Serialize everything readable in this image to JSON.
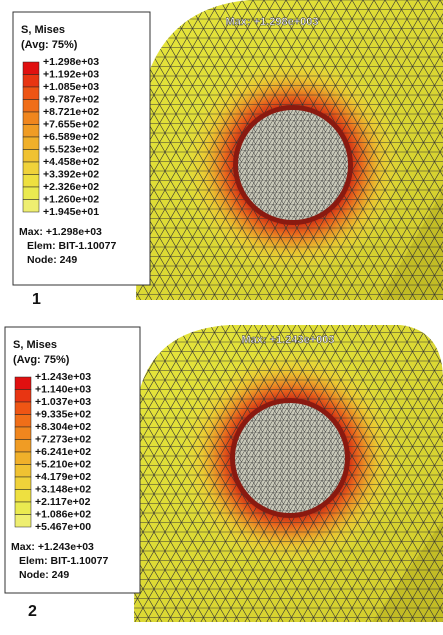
{
  "panels": [
    {
      "legend_title": "S, Mises",
      "legend_subtitle": "(Avg: 75%)",
      "levels": [
        "+1.298e+03",
        "+1.192e+03",
        "+1.085e+03",
        "+9.787e+02",
        "+8.721e+02",
        "+7.655e+02",
        "+6.589e+02",
        "+5.523e+02",
        "+4.458e+02",
        "+3.392e+02",
        "+2.326e+02",
        "+1.260e+02",
        "+1.945e+01"
      ],
      "max": "Max: +1.298e+03",
      "elem": "Elem: BIT-1.10077",
      "node": "Node: 249",
      "max_annotation": "Max: +1.298e+003",
      "label": "1"
    },
    {
      "legend_title": "S, Mises",
      "legend_subtitle": "(Avg: 75%)",
      "levels": [
        "+1.243e+03",
        "+1.140e+03",
        "+1.037e+03",
        "+9.335e+02",
        "+8.304e+02",
        "+7.273e+02",
        "+6.241e+02",
        "+5.210e+02",
        "+4.179e+02",
        "+3.148e+02",
        "+2.117e+02",
        "+1.086e+02",
        "+5.467e+00"
      ],
      "max": "Max: +1.243e+03",
      "elem": "Elem: BIT-1.10077",
      "node": "Node: 249",
      "max_annotation": "Max: +1.243e+003",
      "label": "2"
    }
  ]
}
